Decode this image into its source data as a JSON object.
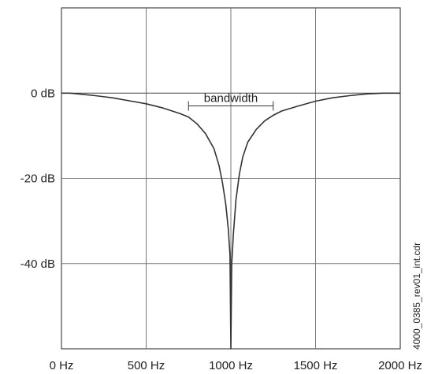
{
  "chart_data": {
    "type": "line",
    "xlabel": "",
    "ylabel": "",
    "xlim": [
      0,
      2000
    ],
    "ylim": [
      -60,
      20
    ],
    "grid": true,
    "x_ticks": [
      {
        "value": 0,
        "label": "0 Hz"
      },
      {
        "value": 500,
        "label": "500 Hz"
      },
      {
        "value": 1000,
        "label": "1000 Hz"
      },
      {
        "value": 1500,
        "label": "1500 Hz"
      },
      {
        "value": 2000,
        "label": "2000 Hz"
      }
    ],
    "y_ticks": [
      {
        "value": 0,
        "label": "0 dB"
      },
      {
        "value": -20,
        "label": "-20 dB"
      },
      {
        "value": -40,
        "label": "-40 dB"
      }
    ],
    "series": [
      {
        "x": [
          0,
          50,
          100,
          200,
          300,
          400,
          500,
          600,
          700,
          750,
          800,
          850,
          900,
          930,
          950,
          970,
          985,
          995,
          1000,
          1005,
          1015,
          1030,
          1050,
          1070,
          1100,
          1150,
          1200,
          1250,
          1300,
          1400,
          1500,
          1600,
          1700,
          1800,
          1900,
          2000
        ],
        "y": [
          0,
          0,
          -0.2,
          -0.6,
          -1.1,
          -1.8,
          -2.5,
          -3.5,
          -4.8,
          -5.6,
          -7.2,
          -9.5,
          -13,
          -17,
          -21,
          -26,
          -32,
          -38,
          -60,
          -40,
          -33,
          -25,
          -19,
          -15,
          -11.5,
          -8.5,
          -6.5,
          -5.2,
          -4.2,
          -3.0,
          -1.9,
          -1.1,
          -0.6,
          -0.2,
          0,
          0
        ]
      }
    ],
    "annotation": {
      "label": "bandwidth",
      "x_start": 750,
      "x_end": 1250,
      "level": -3
    }
  },
  "side_label": "4000_0385_rev01_int.cdr"
}
